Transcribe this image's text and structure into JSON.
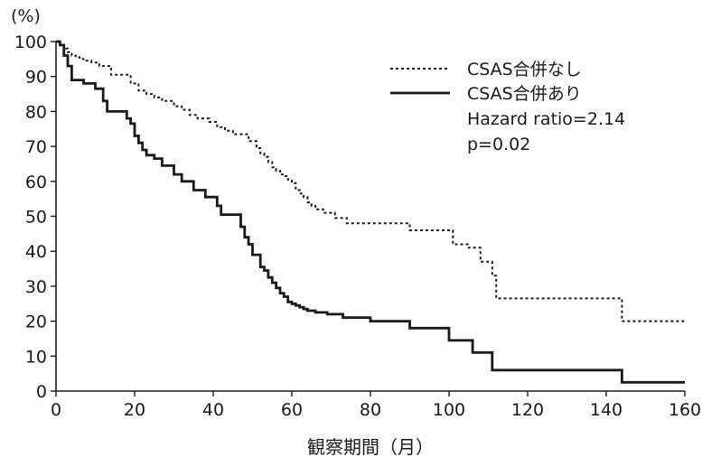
{
  "chart_data": {
    "type": "line",
    "title": "",
    "xlabel": "観察期間（月）",
    "ylabel": "(%)",
    "xlim": [
      0,
      160
    ],
    "ylim": [
      0,
      100
    ],
    "xticks": [
      0,
      20,
      40,
      60,
      80,
      100,
      120,
      140,
      160
    ],
    "yticks": [
      0,
      10,
      20,
      30,
      40,
      50,
      60,
      70,
      80,
      90,
      100
    ],
    "grid": false,
    "legend_position": "top-right",
    "annotations": [
      "Hazard ratio=2.14",
      "p=0.02"
    ],
    "series": [
      {
        "name": "CSAS合併なし",
        "style": "dotted",
        "color": "#1a1a1a",
        "x": [
          0,
          1,
          2,
          3,
          4,
          5,
          6,
          7,
          9,
          11,
          14,
          19,
          21,
          23,
          25,
          27,
          30,
          32,
          34,
          36,
          39,
          41,
          43,
          45,
          49,
          51,
          52,
          53,
          54,
          55,
          56,
          57,
          58,
          59,
          60,
          61,
          62,
          63,
          64,
          65,
          66,
          68,
          71,
          74,
          80,
          90,
          101,
          105,
          108,
          111,
          112,
          143,
          144,
          160
        ],
        "y": [
          100,
          99,
          98,
          97,
          96,
          95.5,
          95,
          94.5,
          94,
          93,
          90.5,
          88,
          86,
          85,
          84,
          83,
          81.5,
          80.5,
          79,
          78,
          77,
          75.5,
          74.5,
          73.5,
          71.5,
          69.5,
          68,
          67,
          65.5,
          64,
          63,
          62,
          61.5,
          60.5,
          59.5,
          57.5,
          56.5,
          55.5,
          54,
          53,
          52,
          51,
          49.5,
          48,
          48,
          46,
          42,
          41,
          37,
          33,
          26.5,
          26.5,
          20,
          20
        ]
      },
      {
        "name": "CSAS合併あり",
        "style": "solid",
        "color": "#1a1a1a",
        "x": [
          0,
          1,
          2,
          3,
          4,
          7,
          10,
          12,
          13,
          18,
          19,
          20,
          21,
          22,
          23,
          25,
          27,
          30,
          32,
          35,
          38,
          41,
          42,
          47,
          48,
          49,
          50,
          52,
          53,
          54,
          55,
          56,
          57,
          58,
          59,
          60,
          61,
          62,
          63,
          64,
          66,
          69,
          73,
          80,
          90,
          100,
          106,
          111,
          112,
          143,
          144,
          160
        ],
        "y": [
          100,
          99,
          96,
          93,
          89,
          88,
          86.5,
          83,
          80,
          78,
          76.5,
          73,
          71,
          69,
          67.5,
          66.5,
          64.5,
          62,
          60,
          57.5,
          55.5,
          53,
          50.5,
          47,
          44,
          42,
          39,
          35.5,
          34.5,
          32.5,
          31,
          29.5,
          28,
          27,
          25.5,
          25,
          24.5,
          24,
          23.5,
          23,
          22.5,
          22,
          21,
          20,
          18,
          14.5,
          11,
          6,
          6,
          6,
          2.5,
          2.5
        ]
      }
    ]
  }
}
